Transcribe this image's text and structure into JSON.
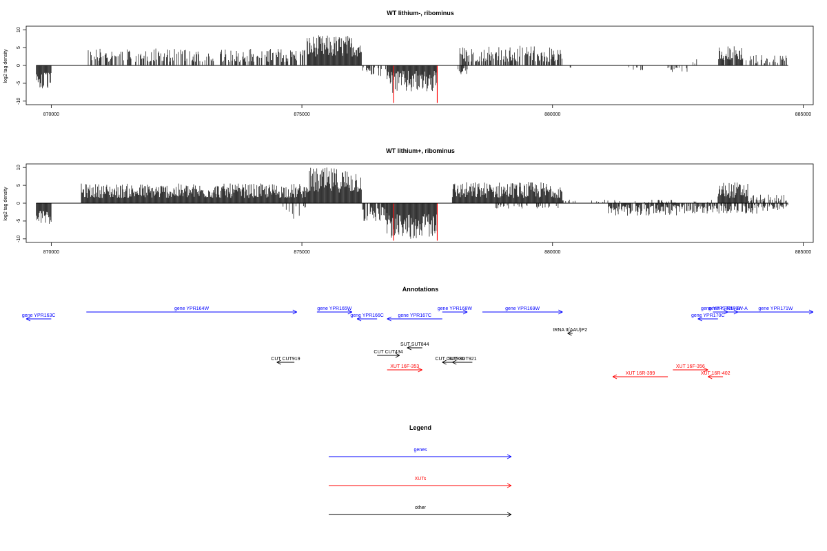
{
  "chart_data": [
    {
      "type": "bar",
      "title": "WT lithium-, ribominus",
      "xlabel": "",
      "ylabel": "log2 tag density",
      "xlim": [
        869500,
        885200
      ],
      "ylim": [
        -11,
        11
      ],
      "x_ticks": [
        870000,
        875000,
        880000,
        885000
      ],
      "x_tick_labels": [
        "870000",
        "875000",
        "880000",
        "885000"
      ],
      "y_ticks": [
        -10,
        -5,
        0,
        5,
        10
      ],
      "y_tick_labels": [
        "-10",
        "-5",
        "0",
        "5",
        "10"
      ],
      "grid": false,
      "baseline": {
        "from": 869700,
        "to": 884700
      },
      "positive_regions": [
        {
          "from": 870300,
          "to": 870330,
          "min": 1.0,
          "max": 2.5,
          "density": 0.3
        },
        {
          "from": 870700,
          "to": 875100,
          "min": 1.0,
          "max": 4.8,
          "density": 0.55
        },
        {
          "from": 875100,
          "to": 876200,
          "min": 2.5,
          "max": 8.5,
          "density": 1.0
        },
        {
          "from": 878150,
          "to": 880200,
          "min": 1.0,
          "max": 5.5,
          "density": 0.7
        },
        {
          "from": 882800,
          "to": 882900,
          "min": 0.5,
          "max": 2.0,
          "density": 0.3
        },
        {
          "from": 883300,
          "to": 883800,
          "min": 1.5,
          "max": 5.5,
          "density": 0.9
        },
        {
          "from": 883800,
          "to": 884700,
          "min": 0.5,
          "max": 3.0,
          "density": 0.35
        }
      ],
      "negative_regions": [
        {
          "from": 869700,
          "to": 870000,
          "min": 2.0,
          "max": 7.0,
          "density": 1.0
        },
        {
          "from": 876200,
          "to": 876700,
          "min": 0.5,
          "max": 3.0,
          "density": 0.5
        },
        {
          "from": 876700,
          "to": 877700,
          "min": 1.5,
          "max": 8.0,
          "density": 1.0
        },
        {
          "from": 878100,
          "to": 878300,
          "min": 0.5,
          "max": 2.5,
          "density": 0.4
        },
        {
          "from": 880300,
          "to": 880400,
          "min": 0.5,
          "max": 1.0,
          "density": 0.2
        },
        {
          "from": 881500,
          "to": 881800,
          "min": 0.5,
          "max": 1.5,
          "density": 0.2
        },
        {
          "from": 882300,
          "to": 882700,
          "min": 0.5,
          "max": 2.0,
          "density": 0.4
        }
      ],
      "highlight_lines": [
        {
          "x": 876830,
          "y": -10.5,
          "color": "#ff0000"
        },
        {
          "x": 877700,
          "y": -10.5,
          "color": "#ff0000"
        }
      ]
    },
    {
      "type": "bar",
      "title": "WT lithium+, ribominus",
      "xlabel": "",
      "ylabel": "log2 tag density",
      "xlim": [
        869500,
        885200
      ],
      "ylim": [
        -11,
        11
      ],
      "x_ticks": [
        870000,
        875000,
        880000,
        885000
      ],
      "x_tick_labels": [
        "870000",
        "875000",
        "880000",
        "885000"
      ],
      "y_ticks": [
        -10,
        -5,
        0,
        5,
        10
      ],
      "y_tick_labels": [
        "-10",
        "-5",
        "0",
        "5",
        "10"
      ],
      "grid": false,
      "baseline": {
        "from": 869700,
        "to": 884700
      },
      "positive_regions": [
        {
          "from": 870600,
          "to": 875100,
          "min": 1.5,
          "max": 5.5,
          "density": 1.0
        },
        {
          "from": 875100,
          "to": 876200,
          "min": 3.0,
          "max": 10.0,
          "density": 1.0
        },
        {
          "from": 878000,
          "to": 880200,
          "min": 1.5,
          "max": 6.0,
          "density": 1.0
        },
        {
          "from": 880200,
          "to": 883300,
          "min": 0.3,
          "max": 1.0,
          "density": 0.15
        },
        {
          "from": 883300,
          "to": 883900,
          "min": 1.5,
          "max": 6.0,
          "density": 1.0
        },
        {
          "from": 883900,
          "to": 884700,
          "min": 0.5,
          "max": 2.5,
          "density": 0.5
        }
      ],
      "negative_regions": [
        {
          "from": 869700,
          "to": 870000,
          "min": 2.0,
          "max": 6.0,
          "density": 1.0
        },
        {
          "from": 874600,
          "to": 875100,
          "min": 0.5,
          "max": 4.5,
          "density": 0.2
        },
        {
          "from": 876200,
          "to": 876700,
          "min": 1.0,
          "max": 5.0,
          "density": 0.8
        },
        {
          "from": 876700,
          "to": 877700,
          "min": 3.0,
          "max": 10.0,
          "density": 1.0
        },
        {
          "from": 878800,
          "to": 880200,
          "min": 0.5,
          "max": 1.5,
          "density": 0.2
        },
        {
          "from": 881100,
          "to": 882700,
          "min": 0.5,
          "max": 3.5,
          "density": 0.8
        },
        {
          "from": 882700,
          "to": 884700,
          "min": 0.5,
          "max": 3.0,
          "density": 0.6
        }
      ],
      "highlight_lines": [
        {
          "x": 876830,
          "y": -10.5,
          "color": "#ff0000"
        },
        {
          "x": 877700,
          "y": -10.5,
          "color": "#ff0000"
        }
      ]
    }
  ],
  "annotations": {
    "title": "Annotations",
    "xlim": [
      869500,
      885200
    ],
    "features": [
      {
        "label": "gene YPR163C",
        "class": "gene",
        "strand": "-",
        "from": 869500,
        "to": 870000,
        "row": 2
      },
      {
        "label": "gene YPR164W",
        "class": "gene",
        "strand": "+",
        "from": 870700,
        "to": 874900,
        "row": 1
      },
      {
        "label": "gene YPR165W",
        "class": "gene",
        "strand": "+",
        "from": 875300,
        "to": 876000,
        "row": 1
      },
      {
        "label": "gene YPR166C",
        "class": "gene",
        "strand": "-",
        "from": 876100,
        "to": 876500,
        "row": 2
      },
      {
        "label": "gene YPR167C",
        "class": "gene",
        "strand": "-",
        "from": 876700,
        "to": 877800,
        "row": 2
      },
      {
        "label": "gene YPR168W",
        "class": "gene",
        "strand": "+",
        "from": 877800,
        "to": 878300,
        "row": 1
      },
      {
        "label": "gene YPR169W",
        "class": "gene",
        "strand": "+",
        "from": 878600,
        "to": 880200,
        "row": 1
      },
      {
        "label": "gene YPR170W-B",
        "class": "gene",
        "strand": "+",
        "from": 883200,
        "to": 883500,
        "row": 1
      },
      {
        "label": "gene YPR170W-A",
        "class": "gene",
        "strand": "+",
        "from": 883300,
        "to": 883700,
        "row": 1
      },
      {
        "label": "gene YPR170C",
        "class": "gene",
        "strand": "-",
        "from": 882900,
        "to": 883300,
        "row": 2
      },
      {
        "label": "gene YPR171W",
        "class": "gene",
        "strand": "+",
        "from": 883700,
        "to": 885200,
        "row": 1
      },
      {
        "label": "tRNA tI(AAU)P2",
        "class": "other",
        "strand": "-",
        "from": 880300,
        "to": 880400,
        "row": 3
      },
      {
        "label": "SUT SUT844",
        "class": "other",
        "strand": "-",
        "from": 877100,
        "to": 877400,
        "row": 4
      },
      {
        "label": "CUT CUT434",
        "class": "other",
        "strand": "+",
        "from": 876500,
        "to": 876950,
        "row": 5
      },
      {
        "label": "CUT CUT919",
        "class": "other",
        "strand": "-",
        "from": 874500,
        "to": 874850,
        "row": 6
      },
      {
        "label": "CUT CUT920",
        "class": "other",
        "strand": "-",
        "from": 877800,
        "to": 878100,
        "row": 6
      },
      {
        "label": "SUT SUT921",
        "class": "other",
        "strand": "-",
        "from": 878000,
        "to": 878400,
        "row": 6
      },
      {
        "label": "XUT 16F-353",
        "class": "xut",
        "strand": "+",
        "from": 876700,
        "to": 877400,
        "row": 7
      },
      {
        "label": "XUT 16F-356",
        "class": "xut",
        "strand": "+",
        "from": 882400,
        "to": 883100,
        "row": 7
      },
      {
        "label": "XUT 16R-399",
        "class": "xut",
        "strand": "-",
        "from": 881200,
        "to": 882300,
        "row": 8
      },
      {
        "label": "XUT 16R-402",
        "class": "xut",
        "strand": "-",
        "from": 883100,
        "to": 883400,
        "row": 8
      }
    ]
  },
  "legend": {
    "title": "Legend",
    "entries": [
      {
        "label": "genes",
        "class": "gene"
      },
      {
        "label": "XUTs",
        "class": "xut"
      },
      {
        "label": "other",
        "class": "other"
      }
    ]
  },
  "colors": {
    "gene": "#0000ff",
    "xut": "#ff0000",
    "other": "#000000",
    "signal": "#000000",
    "axis": "#000000"
  }
}
